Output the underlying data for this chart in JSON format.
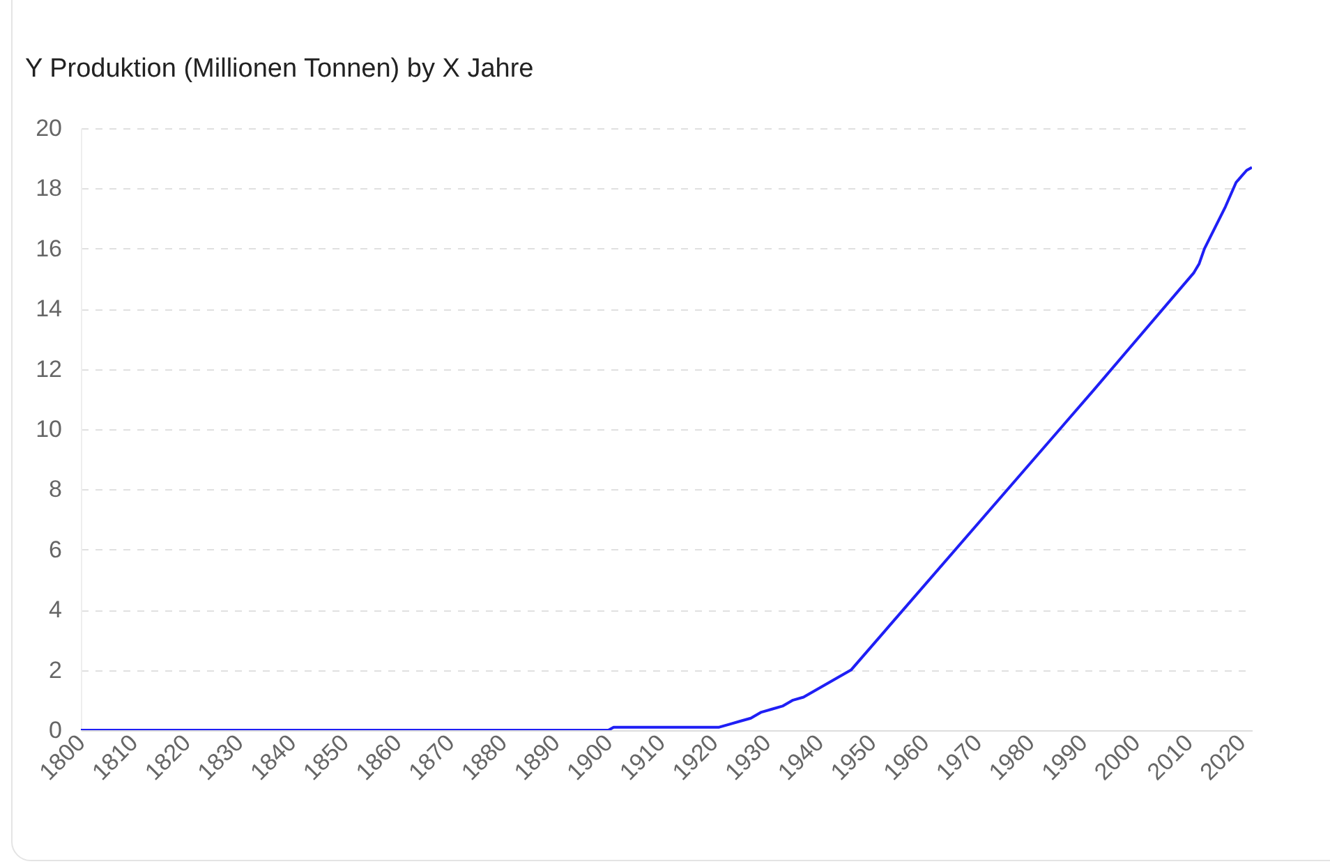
{
  "chart_data": {
    "type": "line",
    "title": "Y Produktion (Millionen Tonnen) by X Jahre",
    "x": [
      1800,
      1900,
      1901,
      1921,
      1923,
      1925,
      1927,
      1929,
      1931,
      1933,
      1935,
      1937,
      1946,
      1992,
      2011,
      2012,
      2013,
      2015,
      2017,
      2019,
      2021,
      2022
    ],
    "series": [
      {
        "color": "#1f1ff5",
        "values": [
          0,
          0,
          0.1,
          0.1,
          0.2,
          0.3,
          0.4,
          0.6,
          0.7,
          0.8,
          1.0,
          1.1,
          2.0,
          11.3,
          15.2,
          15.5,
          16.0,
          16.7,
          17.4,
          18.2,
          18.6,
          18.7
        ]
      }
    ],
    "xlim": [
      1800,
      2022
    ],
    "xticks": [
      1800,
      1810,
      1820,
      1830,
      1840,
      1850,
      1860,
      1870,
      1880,
      1890,
      1900,
      1910,
      1920,
      1930,
      1940,
      1950,
      1960,
      1970,
      1980,
      1990,
      2000,
      2010,
      2020
    ],
    "ylim": [
      0,
      20
    ],
    "yticks": [
      0,
      2,
      4,
      6,
      8,
      10,
      12,
      14,
      16,
      18,
      20
    ],
    "grid": "y",
    "legend": false,
    "marker": "none",
    "line_style": "solid"
  }
}
